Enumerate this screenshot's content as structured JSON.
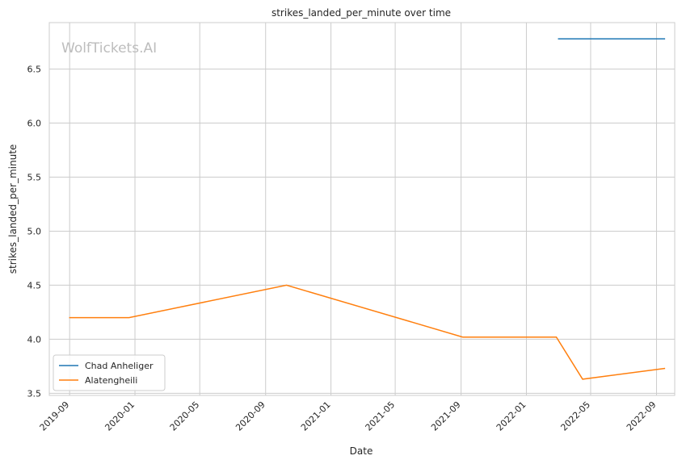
{
  "watermark": "WolfTickets.AI",
  "chart_data": {
    "type": "line",
    "title": "strikes_landed_per_minute over time",
    "xlabel": "Date",
    "ylabel": "strikes_landed_per_minute",
    "x_ticks": [
      "2019-09",
      "2020-01",
      "2020-05",
      "2020-09",
      "2021-01",
      "2021-05",
      "2021-09",
      "2022-01",
      "2022-05",
      "2022-09"
    ],
    "y_ticks": [
      3.5,
      4.0,
      4.5,
      5.0,
      5.5,
      6.0,
      6.5
    ],
    "ylim": [
      3.48,
      6.93
    ],
    "xlim": [
      "2019-07-25",
      "2022-10-05"
    ],
    "grid": true,
    "legend_position": "bottom-left",
    "series": [
      {
        "name": "Chad Anheliger",
        "color": "#1f77b4",
        "points": [
          {
            "x": "2022-03-01",
            "y": 6.78
          },
          {
            "x": "2022-09-17",
            "y": 6.78
          }
        ]
      },
      {
        "name": "Alatengheili",
        "color": "#ff7f0e",
        "points": [
          {
            "x": "2019-08-31",
            "y": 4.2
          },
          {
            "x": "2019-12-21",
            "y": 4.2
          },
          {
            "x": "2020-10-10",
            "y": 4.5
          },
          {
            "x": "2021-09-04",
            "y": 4.02
          },
          {
            "x": "2022-02-26",
            "y": 4.02
          },
          {
            "x": "2022-04-16",
            "y": 3.63
          },
          {
            "x": "2022-09-17",
            "y": 3.73
          }
        ]
      }
    ]
  }
}
